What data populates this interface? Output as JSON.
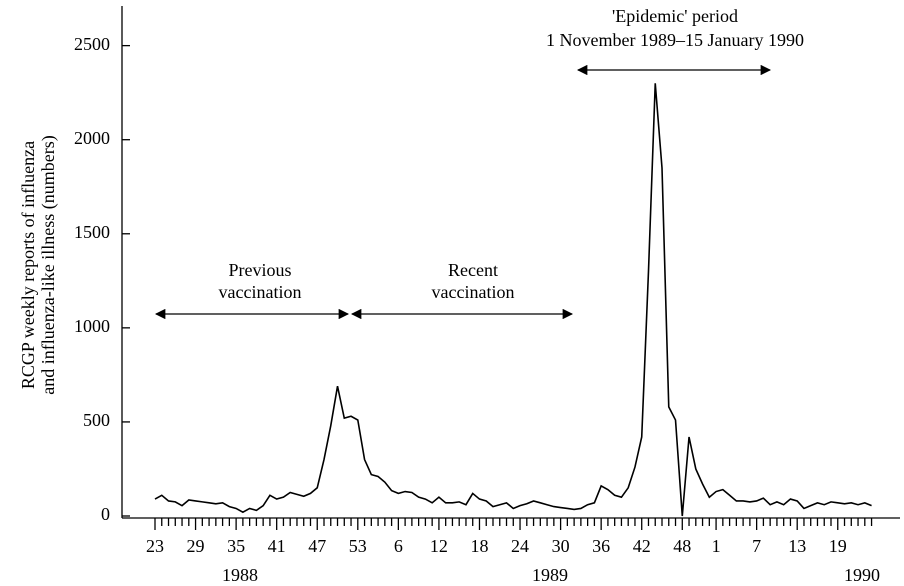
{
  "chart_data": {
    "type": "line",
    "y_label_lines": [
      "RCGP weekly reports of influenza",
      "and influenza-like illness (numbers)"
    ],
    "annotations": [
      {
        "lines": [
          "Previous",
          "vaccination"
        ]
      },
      {
        "lines": [
          "Recent",
          "vaccination"
        ]
      },
      {
        "lines": [
          "'Epidemic' period",
          "1 November 1989–15 January 1990"
        ]
      }
    ],
    "years": [
      "1988",
      "1989",
      "1990"
    ],
    "categories": [
      "23",
      null,
      null,
      null,
      null,
      null,
      "29",
      null,
      null,
      null,
      null,
      null,
      "35",
      null,
      null,
      null,
      null,
      null,
      "41",
      null,
      null,
      null,
      null,
      null,
      "47",
      null,
      null,
      null,
      null,
      null,
      "53",
      null,
      null,
      null,
      null,
      null,
      "6",
      null,
      null,
      null,
      null,
      null,
      "12",
      null,
      null,
      null,
      null,
      null,
      "18",
      null,
      null,
      null,
      null,
      null,
      "24",
      null,
      null,
      null,
      null,
      null,
      "30",
      null,
      null,
      null,
      null,
      null,
      "36",
      null,
      null,
      null,
      null,
      null,
      "42",
      null,
      null,
      null,
      null,
      null,
      "48",
      null,
      null,
      null,
      null,
      "1",
      null,
      null,
      null,
      null,
      null,
      "7",
      null,
      null,
      null,
      null,
      null,
      "13",
      null,
      null,
      null,
      null,
      null,
      "19",
      null,
      null,
      null,
      null,
      null
    ],
    "values": [
      90,
      110,
      80,
      75,
      55,
      85,
      80,
      75,
      70,
      65,
      70,
      50,
      40,
      20,
      40,
      30,
      55,
      110,
      90,
      100,
      125,
      115,
      105,
      120,
      150,
      300,
      480,
      690,
      520,
      530,
      510,
      300,
      220,
      210,
      180,
      135,
      120,
      130,
      125,
      100,
      90,
      70,
      100,
      70,
      70,
      75,
      60,
      120,
      90,
      80,
      50,
      60,
      70,
      40,
      55,
      65,
      80,
      70,
      60,
      50,
      45,
      40,
      35,
      40,
      60,
      70,
      160,
      140,
      110,
      100,
      150,
      260,
      420,
      1300,
      2300,
      1850,
      580,
      510,
      0,
      420,
      250,
      170,
      100,
      130,
      140,
      110,
      80,
      80,
      75,
      80,
      95,
      60,
      75,
      60,
      90,
      80,
      40,
      55,
      70,
      60,
      75,
      70,
      65,
      70,
      60,
      70,
      55
    ],
    "color": "#000000",
    "ylim": [
      0,
      2700
    ],
    "yticks": [
      0,
      500,
      1000,
      1500,
      2000,
      2500
    ]
  }
}
